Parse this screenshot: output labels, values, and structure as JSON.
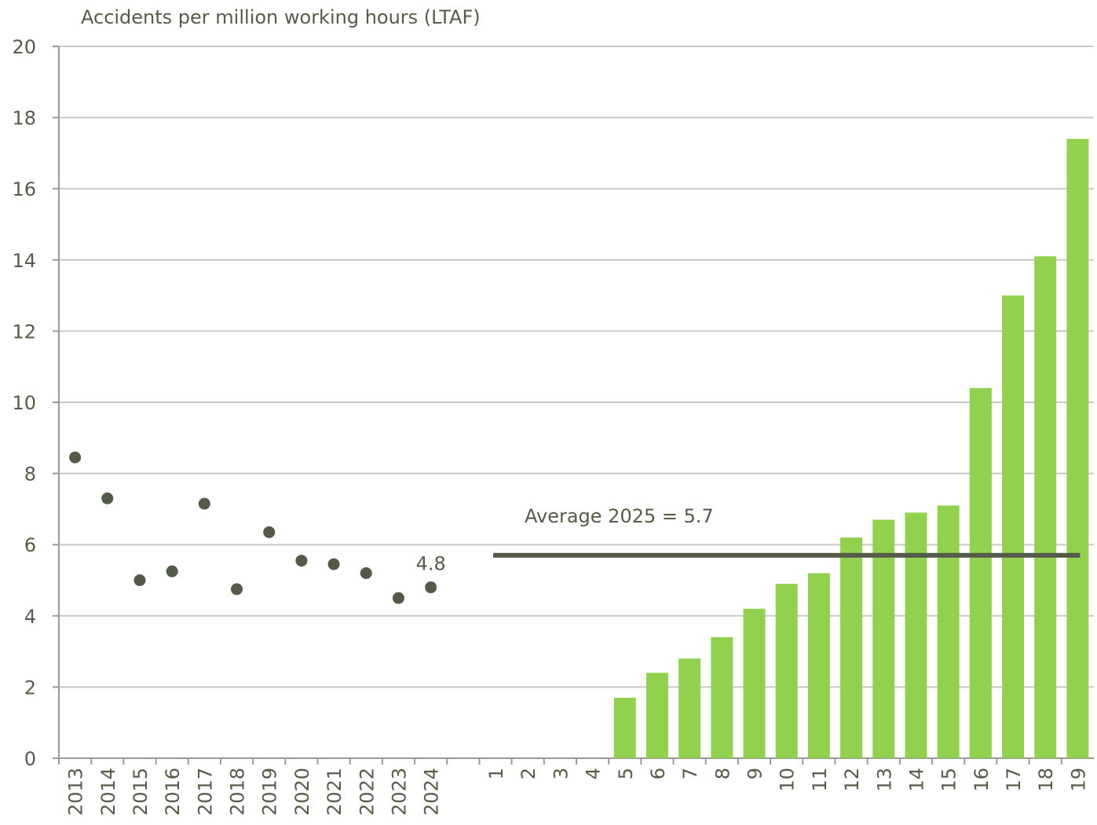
{
  "chart_data": {
    "type": "bar",
    "y_axis_title": "Accidents per million working hours (LTAF)",
    "categories": [
      "2013",
      "2014",
      "2015",
      "2016",
      "2017",
      "2018",
      "2019",
      "2020",
      "2021",
      "2022",
      "2023",
      "2024",
      null,
      "1",
      "2",
      "3",
      "4",
      "5",
      "6",
      "7",
      "8",
      "9",
      "10",
      "11",
      "12",
      "13",
      "14",
      "15",
      "16",
      "17",
      "18",
      "19"
    ],
    "series": [
      {
        "type": "scatter",
        "color": "#545a48",
        "values": [
          8.45,
          7.3,
          5.0,
          5.25,
          7.15,
          4.75,
          6.35,
          5.55,
          5.45,
          5.2,
          4.5,
          4.8,
          null,
          null,
          null,
          null,
          null,
          null,
          null,
          null,
          null,
          null,
          null,
          null,
          null,
          null,
          null,
          null,
          null,
          null,
          null,
          null
        ],
        "value_labels": [
          null,
          null,
          null,
          null,
          null,
          null,
          null,
          null,
          null,
          null,
          null,
          "4.8",
          null,
          null,
          null,
          null,
          null,
          null,
          null,
          null,
          null,
          null,
          null,
          null,
          null,
          null,
          null,
          null,
          null,
          null,
          null,
          null
        ]
      },
      {
        "type": "bar",
        "color": "#92d050",
        "values": [
          null,
          null,
          null,
          null,
          null,
          null,
          null,
          null,
          null,
          null,
          null,
          null,
          null,
          null,
          null,
          null,
          null,
          1.7,
          2.4,
          2.8,
          3.4,
          4.2,
          4.9,
          5.2,
          6.2,
          6.7,
          6.9,
          7.1,
          10.4,
          13.0,
          14.1,
          17.4
        ]
      }
    ],
    "average": {
      "label": "Average 2025 = 5.7",
      "value": 5.7,
      "from": "1",
      "to": "19",
      "color": "#545a48"
    },
    "ylim": [
      0,
      20
    ],
    "yticks": [
      0,
      2,
      4,
      6,
      8,
      10,
      12,
      14,
      16,
      18,
      20
    ],
    "grid": true
  }
}
